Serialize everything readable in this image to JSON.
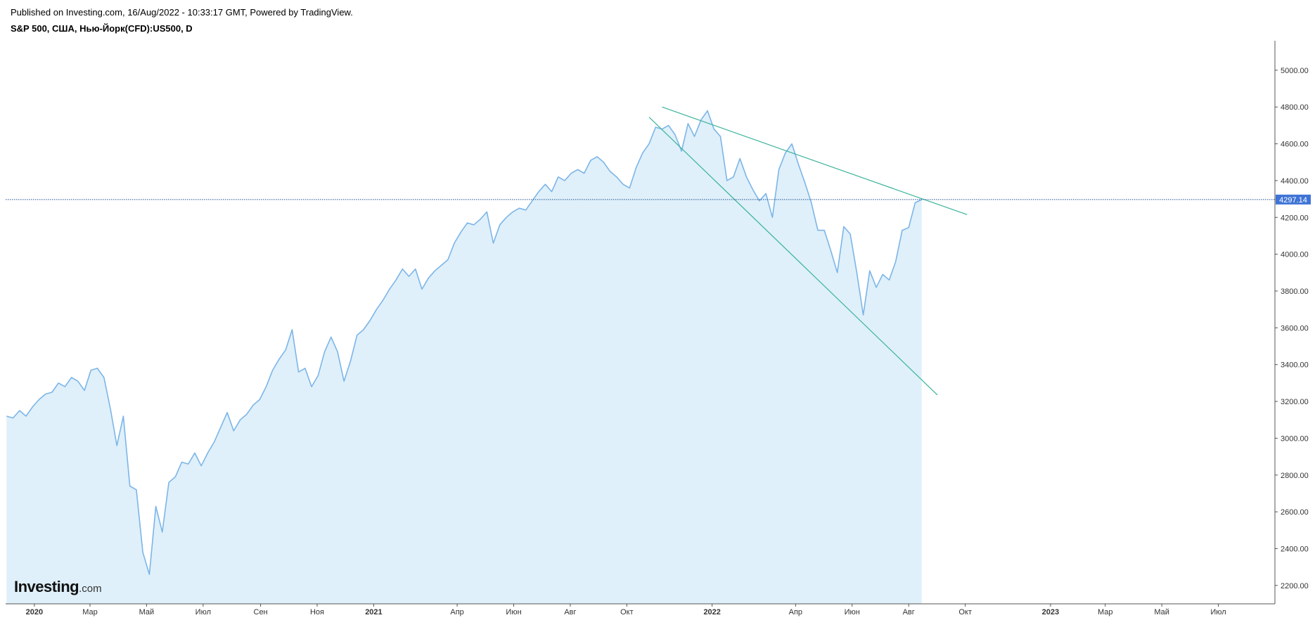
{
  "header": {
    "published": "Published on Investing.com, 16/Aug/2022 - 10:33:17 GMT, Powered by TradingView.",
    "symbol": "S&P 500, США, Нью-Йорк(CFD):US500, D"
  },
  "logo": {
    "brand": "Investing",
    "domain": ".com"
  },
  "colors": {
    "line": "#7cb5e8",
    "fill": "#dff0fa",
    "trendline": "#3bb39a",
    "price_line": "#1d4f91",
    "price_badge": "#3f74d6"
  },
  "chart_data": {
    "type": "area",
    "title": "",
    "xlabel": "",
    "ylabel": "",
    "ylim": [
      2100,
      5160
    ],
    "xlim": [
      "2019-12-01",
      "2023-08-31"
    ],
    "last_price": 4297.14,
    "last_price_label": "4297.14",
    "grid": false,
    "y_ticks": [
      "2200.00",
      "2400.00",
      "2600.00",
      "2800.00",
      "3000.00",
      "3200.00",
      "3400.00",
      "3600.00",
      "3800.00",
      "4000.00",
      "4200.00",
      "4400.00",
      "4600.00",
      "4800.00",
      "5000.00"
    ],
    "x_ticks": [
      {
        "label": "2020",
        "date": "2020-01-01",
        "year": true
      },
      {
        "label": "Мар",
        "date": "2020-03-01",
        "year": false
      },
      {
        "label": "Май",
        "date": "2020-05-01",
        "year": false
      },
      {
        "label": "Июл",
        "date": "2020-07-01",
        "year": false
      },
      {
        "label": "Сен",
        "date": "2020-09-01",
        "year": false
      },
      {
        "label": "Ноя",
        "date": "2020-11-01",
        "year": false
      },
      {
        "label": "2021",
        "date": "2021-01-01",
        "year": true
      },
      {
        "label": "Апр",
        "date": "2021-04-01",
        "year": false
      },
      {
        "label": "Июн",
        "date": "2021-06-01",
        "year": false
      },
      {
        "label": "Авг",
        "date": "2021-08-01",
        "year": false
      },
      {
        "label": "Окт",
        "date": "2021-10-01",
        "year": false
      },
      {
        "label": "2022",
        "date": "2022-01-01",
        "year": true
      },
      {
        "label": "Апр",
        "date": "2022-04-01",
        "year": false
      },
      {
        "label": "Июн",
        "date": "2022-06-01",
        "year": false
      },
      {
        "label": "Авг",
        "date": "2022-08-01",
        "year": false
      },
      {
        "label": "Окт",
        "date": "2022-10-01",
        "year": false
      },
      {
        "label": "2023",
        "date": "2023-01-01",
        "year": true
      },
      {
        "label": "Мар",
        "date": "2023-03-01",
        "year": false
      },
      {
        "label": "Май",
        "date": "2023-05-01",
        "year": false
      },
      {
        "label": "Июл",
        "date": "2023-07-01",
        "year": false
      }
    ],
    "series": [
      {
        "points": [
          [
            "2019-12-02",
            3120
          ],
          [
            "2019-12-09",
            3110
          ],
          [
            "2019-12-16",
            3150
          ],
          [
            "2019-12-23",
            3120
          ],
          [
            "2019-12-30",
            3170
          ],
          [
            "2020-01-06",
            3210
          ],
          [
            "2020-01-13",
            3240
          ],
          [
            "2020-01-20",
            3250
          ],
          [
            "2020-01-27",
            3300
          ],
          [
            "2020-02-03",
            3280
          ],
          [
            "2020-02-10",
            3330
          ],
          [
            "2020-02-17",
            3310
          ],
          [
            "2020-02-24",
            3260
          ],
          [
            "2020-03-02",
            3370
          ],
          [
            "2020-03-09",
            3380
          ],
          [
            "2020-03-16",
            3330
          ],
          [
            "2020-03-23",
            3160
          ],
          [
            "2020-03-30",
            2960
          ],
          [
            "2020-04-06",
            3120
          ],
          [
            "2020-04-13",
            2740
          ],
          [
            "2020-04-20",
            2720
          ],
          [
            "2020-04-27",
            2380
          ],
          [
            "2020-05-04",
            2260
          ],
          [
            "2020-05-11",
            2630
          ],
          [
            "2020-05-18",
            2490
          ],
          [
            "2020-05-25",
            2760
          ],
          [
            "2020-06-01",
            2790
          ],
          [
            "2020-06-08",
            2870
          ],
          [
            "2020-06-15",
            2860
          ],
          [
            "2020-06-22",
            2920
          ],
          [
            "2020-06-29",
            2850
          ],
          [
            "2020-07-06",
            2920
          ],
          [
            "2020-07-13",
            2980
          ],
          [
            "2020-07-20",
            3060
          ],
          [
            "2020-07-27",
            3140
          ],
          [
            "2020-08-03",
            3040
          ],
          [
            "2020-08-10",
            3100
          ],
          [
            "2020-08-17",
            3130
          ],
          [
            "2020-08-24",
            3180
          ],
          [
            "2020-08-31",
            3210
          ],
          [
            "2020-09-07",
            3280
          ],
          [
            "2020-09-14",
            3370
          ],
          [
            "2020-09-21",
            3430
          ],
          [
            "2020-09-28",
            3480
          ],
          [
            "2020-10-05",
            3590
          ],
          [
            "2020-10-12",
            3360
          ],
          [
            "2020-10-19",
            3380
          ],
          [
            "2020-10-26",
            3280
          ],
          [
            "2020-11-02",
            3340
          ],
          [
            "2020-11-09",
            3470
          ],
          [
            "2020-11-16",
            3550
          ],
          [
            "2020-11-23",
            3470
          ],
          [
            "2020-11-30",
            3310
          ],
          [
            "2020-12-07",
            3420
          ],
          [
            "2020-12-14",
            3560
          ],
          [
            "2020-12-21",
            3590
          ],
          [
            "2020-12-28",
            3640
          ],
          [
            "2021-01-04",
            3700
          ],
          [
            "2021-01-11",
            3750
          ],
          [
            "2021-01-18",
            3810
          ],
          [
            "2021-01-25",
            3860
          ],
          [
            "2021-02-01",
            3920
          ],
          [
            "2021-02-08",
            3880
          ],
          [
            "2021-02-15",
            3920
          ],
          [
            "2021-02-22",
            3810
          ],
          [
            "2021-03-01",
            3870
          ],
          [
            "2021-03-08",
            3910
          ],
          [
            "2021-03-15",
            3940
          ],
          [
            "2021-03-22",
            3970
          ],
          [
            "2021-03-29",
            4060
          ],
          [
            "2021-04-05",
            4120
          ],
          [
            "2021-04-12",
            4170
          ],
          [
            "2021-04-19",
            4160
          ],
          [
            "2021-04-26",
            4190
          ],
          [
            "2021-05-03",
            4230
          ],
          [
            "2021-05-10",
            4060
          ],
          [
            "2021-05-17",
            4160
          ],
          [
            "2021-05-24",
            4200
          ],
          [
            "2021-05-31",
            4230
          ],
          [
            "2021-06-07",
            4250
          ],
          [
            "2021-06-14",
            4240
          ],
          [
            "2021-06-21",
            4290
          ],
          [
            "2021-06-28",
            4340
          ],
          [
            "2021-07-05",
            4380
          ],
          [
            "2021-07-12",
            4340
          ],
          [
            "2021-07-19",
            4420
          ],
          [
            "2021-07-26",
            4400
          ],
          [
            "2021-08-02",
            4440
          ],
          [
            "2021-08-09",
            4460
          ],
          [
            "2021-08-16",
            4440
          ],
          [
            "2021-08-23",
            4510
          ],
          [
            "2021-08-30",
            4530
          ],
          [
            "2021-09-06",
            4500
          ],
          [
            "2021-09-13",
            4450
          ],
          [
            "2021-09-20",
            4420
          ],
          [
            "2021-09-27",
            4380
          ],
          [
            "2021-10-04",
            4360
          ],
          [
            "2021-10-11",
            4470
          ],
          [
            "2021-10-18",
            4550
          ],
          [
            "2021-10-25",
            4600
          ],
          [
            "2021-11-01",
            4690
          ],
          [
            "2021-11-08",
            4680
          ],
          [
            "2021-11-15",
            4700
          ],
          [
            "2021-11-22",
            4650
          ],
          [
            "2021-11-29",
            4560
          ],
          [
            "2021-12-06",
            4710
          ],
          [
            "2021-12-13",
            4640
          ],
          [
            "2021-12-20",
            4730
          ],
          [
            "2021-12-27",
            4780
          ],
          [
            "2022-01-03",
            4680
          ],
          [
            "2022-01-10",
            4640
          ],
          [
            "2022-01-17",
            4400
          ],
          [
            "2022-01-24",
            4420
          ],
          [
            "2022-01-31",
            4520
          ],
          [
            "2022-02-07",
            4420
          ],
          [
            "2022-02-14",
            4350
          ],
          [
            "2022-02-21",
            4290
          ],
          [
            "2022-02-28",
            4330
          ],
          [
            "2022-03-07",
            4200
          ],
          [
            "2022-03-14",
            4460
          ],
          [
            "2022-03-21",
            4550
          ],
          [
            "2022-03-28",
            4600
          ],
          [
            "2022-04-04",
            4490
          ],
          [
            "2022-04-11",
            4390
          ],
          [
            "2022-04-18",
            4280
          ],
          [
            "2022-04-25",
            4130
          ],
          [
            "2022-05-02",
            4130
          ],
          [
            "2022-05-09",
            4020
          ],
          [
            "2022-05-16",
            3900
          ],
          [
            "2022-05-23",
            4150
          ],
          [
            "2022-05-30",
            4110
          ],
          [
            "2022-06-06",
            3900
          ],
          [
            "2022-06-13",
            3670
          ],
          [
            "2022-06-20",
            3910
          ],
          [
            "2022-06-27",
            3820
          ],
          [
            "2022-07-04",
            3890
          ],
          [
            "2022-07-11",
            3860
          ],
          [
            "2022-07-18",
            3960
          ],
          [
            "2022-07-25",
            4130
          ],
          [
            "2022-08-01",
            4145
          ],
          [
            "2022-08-08",
            4280
          ],
          [
            "2022-08-15",
            4297.14
          ]
        ]
      }
    ],
    "trendlines": [
      {
        "from": [
          "2021-11-08",
          4800
        ],
        "to": [
          "2022-10-03",
          4215
        ]
      },
      {
        "from": [
          "2021-10-25",
          4745
        ],
        "to": [
          "2022-09-01",
          3235
        ]
      }
    ]
  }
}
